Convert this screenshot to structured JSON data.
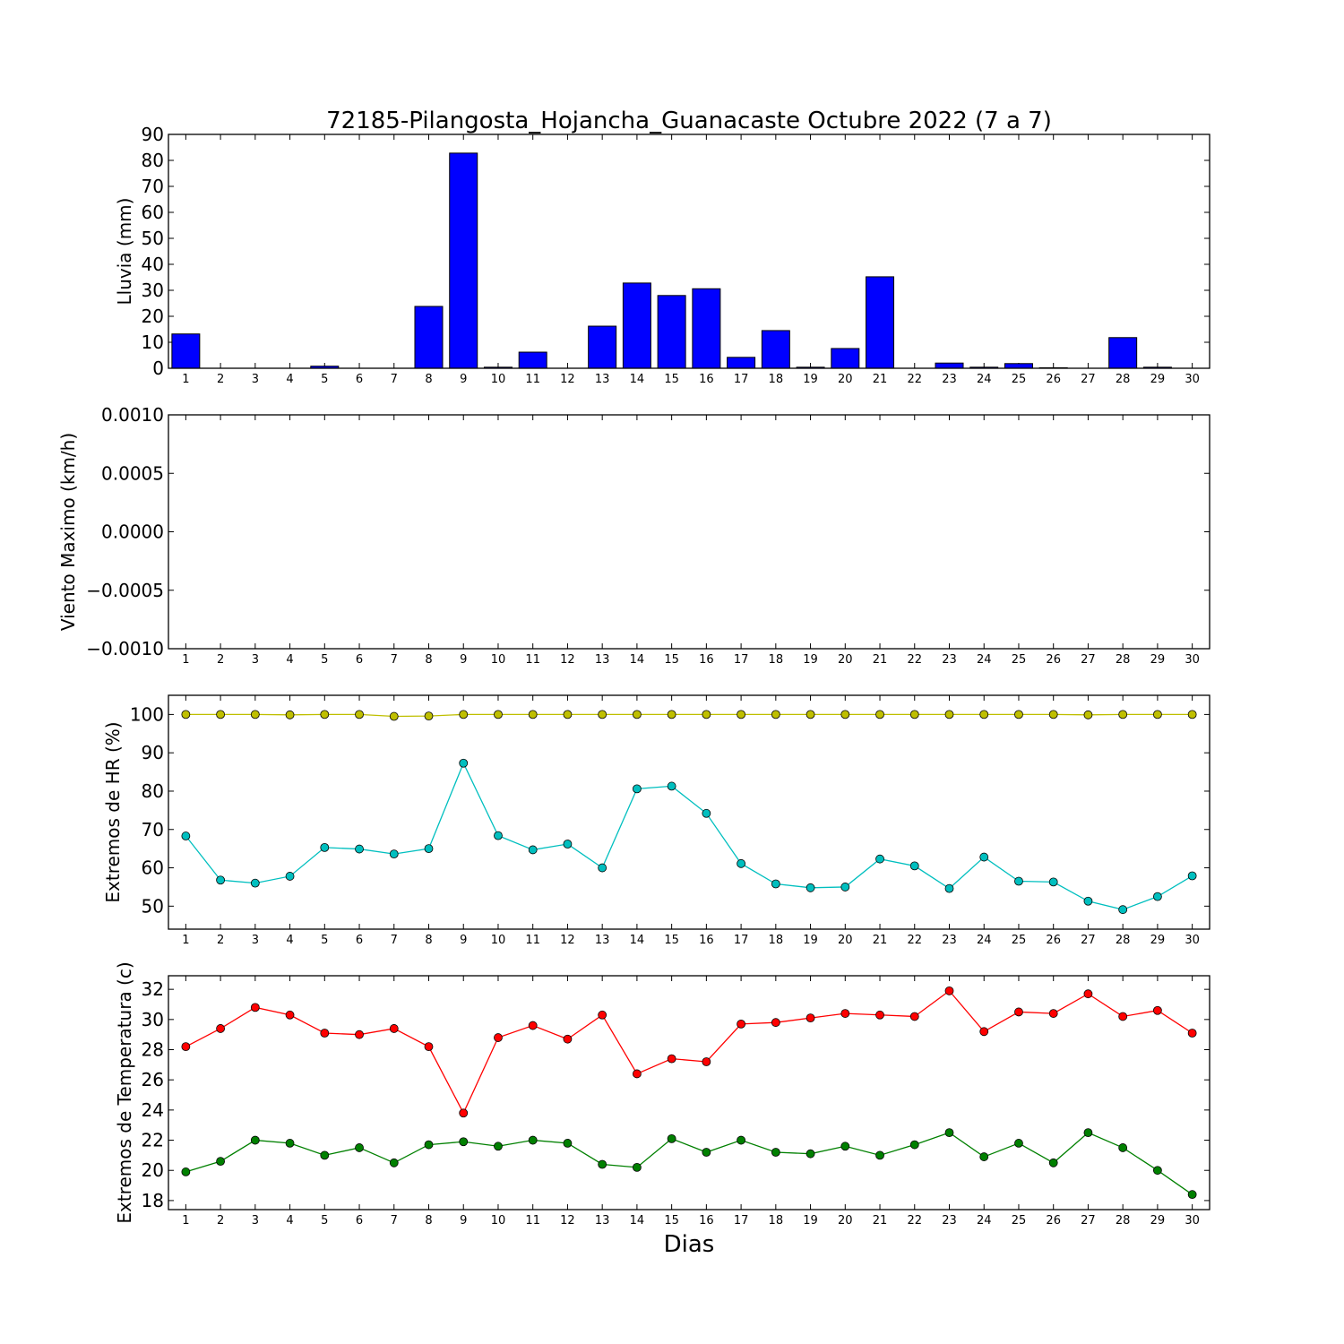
{
  "chart_data": [
    {
      "type": "bar",
      "title": "72185-Pilangosta_Hojancha_Guanacaste Octubre 2022  (7 a 7)",
      "ylabel": "Lluvia (mm)",
      "xlabel": "",
      "ylim": [
        0,
        90
      ],
      "yticks": [
        "0",
        "10",
        "20",
        "30",
        "40",
        "50",
        "60",
        "70",
        "80",
        "90"
      ],
      "categories": [
        "1",
        "2",
        "3",
        "4",
        "5",
        "6",
        "7",
        "8",
        "9",
        "10",
        "11",
        "12",
        "13",
        "14",
        "15",
        "16",
        "17",
        "18",
        "19",
        "20",
        "21",
        "22",
        "23",
        "24",
        "25",
        "26",
        "27",
        "28",
        "29",
        "30"
      ],
      "values": [
        13.2,
        0,
        0,
        0,
        0.8,
        0,
        0,
        23.8,
        82.8,
        0.4,
        6.2,
        0,
        16.2,
        32.8,
        28.0,
        30.6,
        4.2,
        14.5,
        0.4,
        7.6,
        35.2,
        0,
        2.0,
        0.4,
        1.8,
        0.2,
        0,
        11.8,
        0.4,
        0
      ],
      "color": "#0000ff"
    },
    {
      "type": "line",
      "title": "",
      "ylabel": "Viento Maximo (km/h)",
      "xlabel": "",
      "ylim": [
        -0.001,
        0.001
      ],
      "yticks": [
        "−0.0010",
        "−0.0005",
        "0.0000",
        "0.0005",
        "0.0010"
      ],
      "categories": [
        "1",
        "2",
        "3",
        "4",
        "5",
        "6",
        "7",
        "8",
        "9",
        "10",
        "11",
        "12",
        "13",
        "14",
        "15",
        "16",
        "17",
        "18",
        "19",
        "20",
        "21",
        "22",
        "23",
        "24",
        "25",
        "26",
        "27",
        "28",
        "29",
        "30"
      ],
      "series": []
    },
    {
      "type": "line",
      "title": "",
      "ylabel": "Extremos de HR (%)",
      "xlabel": "",
      "ylim": [
        44,
        105
      ],
      "yticks": [
        "50",
        "60",
        "70",
        "80",
        "90",
        "100"
      ],
      "categories": [
        "1",
        "2",
        "3",
        "4",
        "5",
        "6",
        "7",
        "8",
        "9",
        "10",
        "11",
        "12",
        "13",
        "14",
        "15",
        "16",
        "17",
        "18",
        "19",
        "20",
        "21",
        "22",
        "23",
        "24",
        "25",
        "26",
        "27",
        "28",
        "29",
        "30"
      ],
      "series": [
        {
          "color": "#bfbf00",
          "values": [
            100,
            100,
            100,
            99.9,
            100,
            100,
            99.5,
            99.6,
            100,
            100,
            100,
            100,
            100,
            100,
            100,
            100,
            100,
            100,
            100,
            100,
            100,
            100,
            100,
            100,
            100,
            100,
            99.9,
            100,
            100,
            100
          ]
        },
        {
          "color": "#00bfbf",
          "values": [
            68.3,
            56.8,
            56.0,
            57.8,
            65.3,
            64.9,
            63.6,
            65.0,
            87.3,
            68.4,
            64.7,
            66.2,
            60.0,
            80.6,
            81.3,
            74.2,
            61.1,
            55.8,
            54.8,
            55.0,
            62.3,
            60.5,
            54.6,
            62.8,
            56.5,
            56.3,
            51.3,
            49.1,
            52.5,
            57.9
          ]
        }
      ]
    },
    {
      "type": "line",
      "title": "",
      "ylabel": "Extremos de Temperatura (c)",
      "xlabel": "Dias",
      "ylim": [
        17.4,
        32.9
      ],
      "yticks": [
        "18",
        "20",
        "22",
        "24",
        "26",
        "28",
        "30",
        "32"
      ],
      "categories": [
        "1",
        "2",
        "3",
        "4",
        "5",
        "6",
        "7",
        "8",
        "9",
        "10",
        "11",
        "12",
        "13",
        "14",
        "15",
        "16",
        "17",
        "18",
        "19",
        "20",
        "21",
        "22",
        "23",
        "24",
        "25",
        "26",
        "27",
        "28",
        "29",
        "30"
      ],
      "series": [
        {
          "color": "#ff0000",
          "values": [
            28.2,
            29.4,
            30.8,
            30.3,
            29.1,
            29.0,
            29.4,
            28.2,
            23.8,
            28.8,
            29.6,
            28.7,
            30.3,
            26.4,
            27.4,
            27.2,
            29.7,
            29.8,
            30.1,
            30.4,
            30.3,
            30.2,
            31.9,
            29.2,
            30.5,
            30.4,
            31.7,
            30.2,
            30.6,
            29.1
          ]
        },
        {
          "color": "#008000",
          "values": [
            19.9,
            20.6,
            22.0,
            21.8,
            21.0,
            21.5,
            20.5,
            21.7,
            21.9,
            21.6,
            22.0,
            21.8,
            20.4,
            20.2,
            22.1,
            21.2,
            22.0,
            21.2,
            21.1,
            21.6,
            21.0,
            21.7,
            22.5,
            20.9,
            21.8,
            20.5,
            22.5,
            21.5,
            20.0,
            18.4
          ]
        }
      ]
    }
  ]
}
